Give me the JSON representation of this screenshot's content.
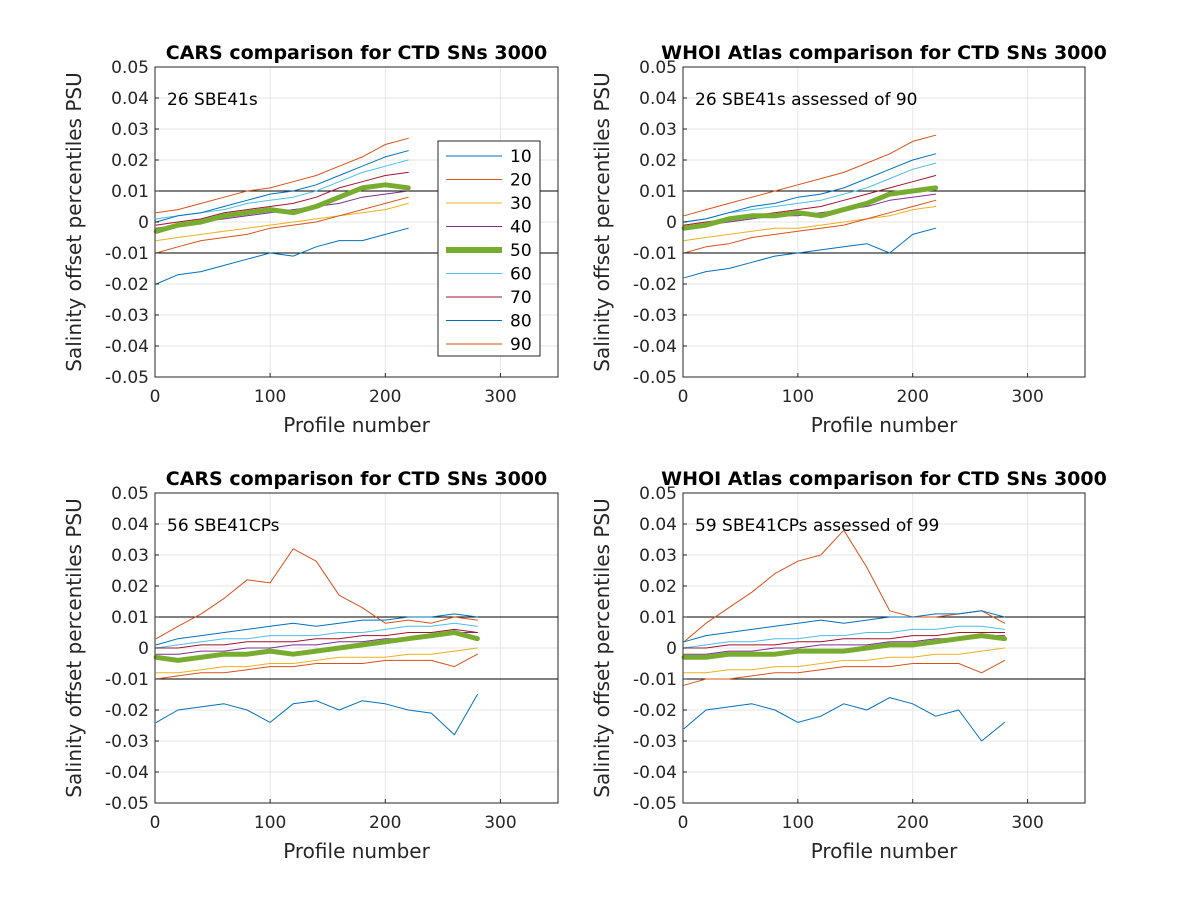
{
  "colors": {
    "p10": "#0072BD",
    "p20": "#D95319",
    "p30": "#EDB120",
    "p40": "#7E2F8E",
    "p50": "#77AC30",
    "p60": "#4DBEEE",
    "p70": "#A2142F",
    "p80": "#0072BD",
    "p90": "#D95319",
    "refline": "#000000",
    "grid": "#e6e6e6"
  },
  "legend": {
    "entries": [
      "10",
      "20",
      "30",
      "40",
      "50",
      "60",
      "70",
      "80",
      "90"
    ]
  },
  "chart_data": [
    {
      "type": "line",
      "title": "CARS comparison for CTD SNs 3000",
      "annotation": "26 SBE41s",
      "xlabel": "Profile number",
      "ylabel": "Salinity offset percentiles PSU",
      "xlim": [
        0,
        350
      ],
      "ylim": [
        -0.05,
        0.05
      ],
      "xticks": [
        "0",
        "100",
        "200",
        "300"
      ],
      "yticks": [
        "-0.05",
        "-0.04",
        "-0.03",
        "-0.02",
        "-0.01",
        "0",
        "0.01",
        "0.02",
        "0.03",
        "0.04",
        "0.05"
      ],
      "grid": true,
      "legend_position": "right",
      "reference_lines": [
        0.01,
        -0.01
      ],
      "x": [
        1,
        20,
        40,
        60,
        80,
        100,
        120,
        140,
        160,
        180,
        200,
        220
      ],
      "series": [
        {
          "name": "10",
          "values": [
            -0.02,
            -0.017,
            -0.016,
            -0.014,
            -0.012,
            -0.01,
            -0.011,
            -0.008,
            -0.006,
            -0.006,
            -0.004,
            -0.002
          ]
        },
        {
          "name": "20",
          "values": [
            0.003,
            0.004,
            0.006,
            0.008,
            0.01,
            0.011,
            0.013,
            0.015,
            0.018,
            0.021,
            0.025,
            0.027
          ]
        },
        {
          "name": "30",
          "values": [
            -0.006,
            -0.005,
            -0.004,
            -0.003,
            -0.002,
            -0.001,
            0.0,
            0.001,
            0.002,
            0.003,
            0.004,
            0.006
          ]
        },
        {
          "name": "40",
          "values": [
            -0.002,
            -0.001,
            0.0,
            0.001,
            0.002,
            0.003,
            0.004,
            0.005,
            0.006,
            0.008,
            0.009,
            0.01
          ]
        },
        {
          "name": "50",
          "values": [
            -0.003,
            -0.001,
            0.0,
            0.002,
            0.003,
            0.004,
            0.003,
            0.005,
            0.008,
            0.011,
            0.012,
            0.011
          ]
        },
        {
          "name": "60",
          "values": [
            0.001,
            0.002,
            0.003,
            0.004,
            0.006,
            0.007,
            0.008,
            0.01,
            0.013,
            0.016,
            0.018,
            0.02
          ]
        },
        {
          "name": "70",
          "values": [
            -0.001,
            0.0,
            0.001,
            0.003,
            0.004,
            0.005,
            0.006,
            0.008,
            0.011,
            0.013,
            0.015,
            0.016
          ]
        },
        {
          "name": "80",
          "values": [
            0.0,
            0.002,
            0.003,
            0.005,
            0.007,
            0.009,
            0.01,
            0.012,
            0.015,
            0.018,
            0.021,
            0.023
          ]
        },
        {
          "name": "90",
          "values": [
            -0.01,
            -0.008,
            -0.006,
            -0.005,
            -0.004,
            -0.002,
            -0.001,
            0.0,
            0.002,
            0.004,
            0.006,
            0.008
          ]
        }
      ]
    },
    {
      "type": "line",
      "title": "WHOI Atlas comparison for CTD SNs 3000",
      "annotation": "26 SBE41s assessed of 90",
      "xlabel": "Profile number",
      "ylabel": "Salinity offset percentiles PSU",
      "xlim": [
        0,
        350
      ],
      "ylim": [
        -0.05,
        0.05
      ],
      "xticks": [
        "0",
        "100",
        "200",
        "300"
      ],
      "yticks": [
        "-0.05",
        "-0.04",
        "-0.03",
        "-0.02",
        "-0.01",
        "0",
        "0.01",
        "0.02",
        "0.03",
        "0.04",
        "0.05"
      ],
      "grid": true,
      "reference_lines": [
        0.01,
        -0.01
      ],
      "x": [
        1,
        20,
        40,
        60,
        80,
        100,
        120,
        140,
        160,
        180,
        200,
        220
      ],
      "series": [
        {
          "name": "10",
          "values": [
            -0.018,
            -0.016,
            -0.015,
            -0.013,
            -0.011,
            -0.01,
            -0.009,
            -0.008,
            -0.007,
            -0.01,
            -0.004,
            -0.002
          ]
        },
        {
          "name": "20",
          "values": [
            0.002,
            0.004,
            0.006,
            0.008,
            0.01,
            0.012,
            0.014,
            0.016,
            0.019,
            0.022,
            0.026,
            0.028
          ]
        },
        {
          "name": "30",
          "values": [
            -0.006,
            -0.005,
            -0.004,
            -0.003,
            -0.002,
            -0.002,
            -0.001,
            0.0,
            0.001,
            0.002,
            0.004,
            0.005
          ]
        },
        {
          "name": "40",
          "values": [
            -0.002,
            -0.001,
            0.0,
            0.001,
            0.002,
            0.002,
            0.003,
            0.004,
            0.005,
            0.007,
            0.008,
            0.009
          ]
        },
        {
          "name": "50",
          "values": [
            -0.002,
            -0.001,
            0.001,
            0.002,
            0.002,
            0.003,
            0.002,
            0.004,
            0.006,
            0.009,
            0.01,
            0.011
          ]
        },
        {
          "name": "60",
          "values": [
            0.0,
            0.001,
            0.003,
            0.004,
            0.005,
            0.006,
            0.007,
            0.009,
            0.011,
            0.014,
            0.017,
            0.019
          ]
        },
        {
          "name": "70",
          "values": [
            -0.001,
            0.0,
            0.001,
            0.002,
            0.003,
            0.004,
            0.005,
            0.007,
            0.009,
            0.011,
            0.013,
            0.015
          ]
        },
        {
          "name": "80",
          "values": [
            0.0,
            0.001,
            0.003,
            0.005,
            0.006,
            0.008,
            0.009,
            0.011,
            0.014,
            0.017,
            0.02,
            0.022
          ]
        },
        {
          "name": "90",
          "values": [
            -0.01,
            -0.008,
            -0.007,
            -0.005,
            -0.004,
            -0.003,
            -0.002,
            -0.001,
            0.001,
            0.003,
            0.005,
            0.007
          ]
        }
      ]
    },
    {
      "type": "line",
      "title": "CARS comparison for CTD SNs 3000",
      "annotation": "56 SBE41CPs",
      "xlabel": "Profile number",
      "ylabel": "Salinity offset percentiles PSU",
      "xlim": [
        0,
        350
      ],
      "ylim": [
        -0.05,
        0.05
      ],
      "xticks": [
        "0",
        "100",
        "200",
        "300"
      ],
      "yticks": [
        "-0.05",
        "-0.04",
        "-0.03",
        "-0.02",
        "-0.01",
        "0",
        "0.01",
        "0.02",
        "0.03",
        "0.04",
        "0.05"
      ],
      "grid": true,
      "reference_lines": [
        0.01,
        -0.01
      ],
      "x": [
        1,
        20,
        40,
        60,
        80,
        100,
        120,
        140,
        160,
        180,
        200,
        220,
        240,
        260,
        280
      ],
      "series": [
        {
          "name": "10",
          "values": [
            -0.024,
            -0.02,
            -0.019,
            -0.018,
            -0.02,
            -0.024,
            -0.018,
            -0.017,
            -0.02,
            -0.017,
            -0.018,
            -0.02,
            -0.021,
            -0.028,
            -0.015
          ]
        },
        {
          "name": "20",
          "values": [
            0.003,
            0.007,
            0.011,
            0.016,
            0.022,
            0.021,
            0.032,
            0.028,
            0.017,
            0.013,
            0.008,
            0.009,
            0.008,
            0.01,
            0.009
          ]
        },
        {
          "name": "30",
          "values": [
            -0.008,
            -0.008,
            -0.007,
            -0.006,
            -0.006,
            -0.005,
            -0.005,
            -0.004,
            -0.003,
            -0.003,
            -0.003,
            -0.002,
            -0.002,
            -0.001,
            0.0
          ]
        },
        {
          "name": "40",
          "values": [
            -0.002,
            -0.002,
            -0.001,
            -0.001,
            0.0,
            0.0,
            0.001,
            0.001,
            0.002,
            0.002,
            0.003,
            0.003,
            0.004,
            0.005,
            0.005
          ]
        },
        {
          "name": "50",
          "values": [
            -0.003,
            -0.004,
            -0.003,
            -0.002,
            -0.002,
            -0.001,
            -0.002,
            -0.001,
            0.0,
            0.001,
            0.002,
            0.003,
            0.004,
            0.005,
            0.003
          ]
        },
        {
          "name": "60",
          "values": [
            0.0,
            0.001,
            0.002,
            0.003,
            0.003,
            0.004,
            0.004,
            0.004,
            0.005,
            0.005,
            0.006,
            0.007,
            0.007,
            0.008,
            0.007
          ]
        },
        {
          "name": "70",
          "values": [
            0.0,
            0.0,
            0.001,
            0.001,
            0.002,
            0.002,
            0.002,
            0.003,
            0.003,
            0.004,
            0.004,
            0.005,
            0.005,
            0.006,
            0.005
          ]
        },
        {
          "name": "80",
          "values": [
            0.001,
            0.003,
            0.004,
            0.005,
            0.006,
            0.007,
            0.008,
            0.007,
            0.008,
            0.009,
            0.009,
            0.01,
            0.01,
            0.011,
            0.01
          ]
        },
        {
          "name": "90",
          "values": [
            -0.01,
            -0.009,
            -0.008,
            -0.008,
            -0.007,
            -0.006,
            -0.006,
            -0.005,
            -0.005,
            -0.005,
            -0.004,
            -0.004,
            -0.004,
            -0.006,
            -0.002
          ]
        }
      ]
    },
    {
      "type": "line",
      "title": "WHOI Atlas comparison for CTD SNs 3000",
      "annotation": "59 SBE41CPs assessed of 99",
      "xlabel": "Profile number",
      "ylabel": "Salinity offset percentiles PSU",
      "xlim": [
        0,
        350
      ],
      "ylim": [
        -0.05,
        0.05
      ],
      "xticks": [
        "0",
        "100",
        "200",
        "300"
      ],
      "yticks": [
        "-0.05",
        "-0.04",
        "-0.03",
        "-0.02",
        "-0.01",
        "0",
        "0.01",
        "0.02",
        "0.03",
        "0.04",
        "0.05"
      ],
      "grid": true,
      "reference_lines": [
        0.01,
        -0.01
      ],
      "x": [
        1,
        20,
        40,
        60,
        80,
        100,
        120,
        140,
        160,
        180,
        200,
        220,
        240,
        260,
        280
      ],
      "series": [
        {
          "name": "10",
          "values": [
            -0.026,
            -0.02,
            -0.019,
            -0.018,
            -0.02,
            -0.024,
            -0.022,
            -0.018,
            -0.02,
            -0.016,
            -0.018,
            -0.022,
            -0.02,
            -0.03,
            -0.024
          ]
        },
        {
          "name": "20",
          "values": [
            0.002,
            0.008,
            0.013,
            0.018,
            0.024,
            0.028,
            0.03,
            0.038,
            0.026,
            0.012,
            0.01,
            0.01,
            0.011,
            0.012,
            0.008
          ]
        },
        {
          "name": "30",
          "values": [
            -0.008,
            -0.008,
            -0.007,
            -0.007,
            -0.006,
            -0.006,
            -0.005,
            -0.004,
            -0.004,
            -0.003,
            -0.003,
            -0.002,
            -0.002,
            -0.001,
            0.0
          ]
        },
        {
          "name": "40",
          "values": [
            -0.002,
            -0.002,
            -0.001,
            -0.001,
            0.0,
            0.0,
            0.001,
            0.001,
            0.001,
            0.002,
            0.002,
            0.003,
            0.003,
            0.004,
            0.004
          ]
        },
        {
          "name": "50",
          "values": [
            -0.003,
            -0.003,
            -0.002,
            -0.002,
            -0.002,
            -0.001,
            -0.001,
            -0.001,
            0.0,
            0.001,
            0.001,
            0.002,
            0.003,
            0.004,
            0.003
          ]
        },
        {
          "name": "60",
          "values": [
            0.0,
            0.001,
            0.002,
            0.002,
            0.003,
            0.003,
            0.004,
            0.004,
            0.005,
            0.005,
            0.006,
            0.006,
            0.007,
            0.007,
            0.006
          ]
        },
        {
          "name": "70",
          "values": [
            0.0,
            0.0,
            0.001,
            0.001,
            0.001,
            0.002,
            0.002,
            0.003,
            0.003,
            0.003,
            0.004,
            0.004,
            0.005,
            0.005,
            0.005
          ]
        },
        {
          "name": "80",
          "values": [
            0.002,
            0.004,
            0.005,
            0.006,
            0.007,
            0.008,
            0.009,
            0.008,
            0.009,
            0.01,
            0.01,
            0.011,
            0.011,
            0.012,
            0.01
          ]
        },
        {
          "name": "90",
          "values": [
            -0.012,
            -0.01,
            -0.01,
            -0.009,
            -0.008,
            -0.008,
            -0.007,
            -0.006,
            -0.006,
            -0.006,
            -0.005,
            -0.005,
            -0.005,
            -0.008,
            -0.004
          ]
        }
      ]
    }
  ]
}
